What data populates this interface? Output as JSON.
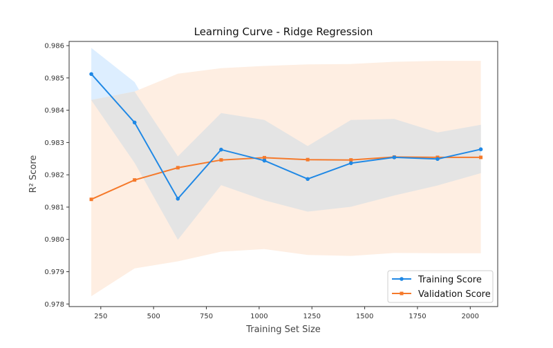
{
  "chart_data": {
    "type": "line",
    "title": "Learning Curve - Ridge Regression",
    "xlabel": "Training Set Size",
    "ylabel": "R² Score",
    "xlim": [
      100,
      2130
    ],
    "ylim": [
      0.97792,
      0.98613
    ],
    "xticks": [
      250,
      500,
      750,
      1000,
      1250,
      1500,
      1750,
      2000
    ],
    "yticks": [
      0.978,
      0.979,
      0.98,
      0.981,
      0.982,
      0.983,
      0.984,
      0.985,
      0.986
    ],
    "x": [
      205,
      410,
      615,
      820,
      1025,
      1230,
      1435,
      1640,
      1845,
      2050
    ],
    "series": [
      {
        "name": "Training Score",
        "color": "#1f88e5",
        "marker": "circle",
        "values": [
          0.98512,
          0.98362,
          0.98126,
          0.98278,
          0.98244,
          0.98187,
          0.98236,
          0.98254,
          0.98249,
          0.98279
        ],
        "band_lower": [
          0.98431,
          0.98237,
          0.97999,
          0.98168,
          0.98121,
          0.98086,
          0.98101,
          0.98136,
          0.98167,
          0.98205
        ],
        "band_upper": [
          0.98593,
          0.98487,
          0.98257,
          0.98391,
          0.9837,
          0.98289,
          0.9837,
          0.98373,
          0.98331,
          0.98355
        ],
        "band_color": "#ddeeff"
      },
      {
        "name": "Validation Score",
        "color": "#f5792a",
        "marker": "square",
        "values": [
          0.98124,
          0.98184,
          0.98222,
          0.98246,
          0.98253,
          0.98247,
          0.98246,
          0.98255,
          0.98254,
          0.98254
        ],
        "band_lower": [
          0.97824,
          0.9791,
          0.97932,
          0.97962,
          0.9797,
          0.97952,
          0.97949,
          0.97958,
          0.97957,
          0.97957
        ],
        "band_upper": [
          0.98432,
          0.98458,
          0.98513,
          0.9853,
          0.98537,
          0.98542,
          0.98543,
          0.9855,
          0.98553,
          0.98553
        ],
        "band_color": "#feeee2"
      }
    ],
    "overlap_color": "#e4e4e4",
    "grid": false,
    "legend_position": "bottom-right"
  }
}
